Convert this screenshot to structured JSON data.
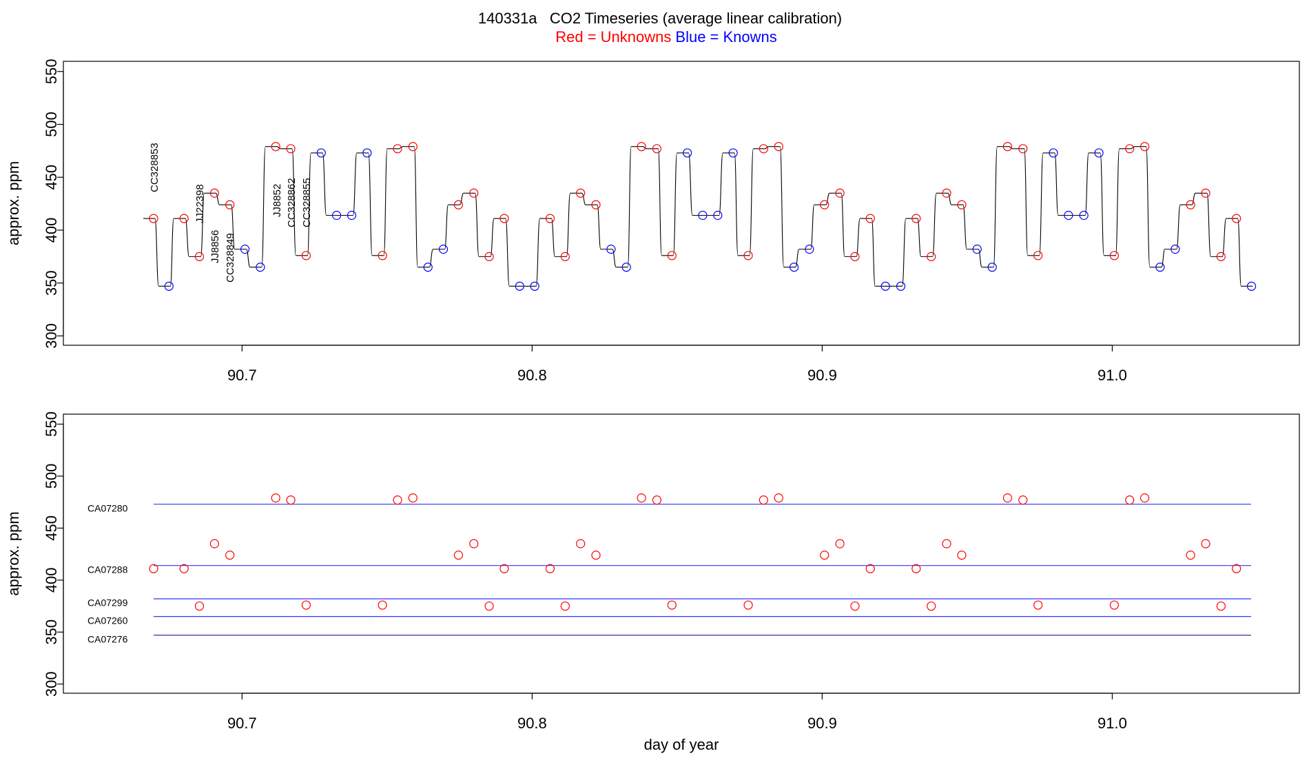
{
  "chart_data": [
    {
      "type": "scatter",
      "title": "140331a   CO2 Timeseries (average linear calibration)",
      "ylabel": "approx. ppm",
      "xlim": [
        90.6384,
        91.0645
      ],
      "ylim": [
        291.2,
        559.6
      ],
      "xticks": [
        90.7,
        90.8,
        90.9,
        {
          "value": 91,
          "label": "91.0"
        }
      ],
      "yticks": [
        300,
        350,
        400,
        450,
        500,
        550
      ],
      "trace_color": "#000000",
      "annotations": [
        "CC328853",
        "JJ22398",
        "JJ8856",
        "CC328849",
        "JJ8852",
        "CC328862",
        "CC328855"
      ],
      "annotation_color": "#ff0000",
      "series": [
        {
          "name": "Red = Unknowns",
          "color": "#ff0000",
          "x": [
            90.6695,
            90.68,
            90.6853,
            90.6905,
            90.6958,
            90.7116,
            90.7168,
            90.7221,
            90.7484,
            90.7536,
            90.7589,
            90.7746,
            90.7799,
            90.7852,
            90.7904,
            90.8062,
            90.8114,
            90.8167,
            90.822,
            90.8377,
            90.843,
            90.8482,
            90.8745,
            90.8798,
            90.885,
            90.9008,
            90.9061,
            90.9113,
            90.9166,
            90.9324,
            90.9376,
            90.9429,
            90.9481,
            90.9639,
            90.9692,
            90.9744,
            91.0007,
            91.006,
            91.0112,
            91.027,
            91.0322,
            91.0375,
            91.0428
          ],
          "values": [
            411,
            411,
            375,
            435,
            424,
            479,
            477,
            376,
            376,
            477,
            479,
            424,
            435,
            375,
            411,
            411,
            375,
            435,
            424,
            479,
            477,
            376,
            376,
            477,
            479,
            424,
            435,
            375,
            411,
            411,
            375,
            435,
            424,
            479,
            477,
            376,
            376,
            477,
            479,
            424,
            435,
            375,
            411
          ]
        },
        {
          "name": "Blue = Knowns",
          "color": "#0000ff",
          "x": [
            90.6748,
            90.701,
            90.7063,
            90.7273,
            90.7326,
            90.7378,
            90.7431,
            90.7641,
            90.7694,
            90.7957,
            90.8009,
            90.8272,
            90.8325,
            90.8535,
            90.8588,
            90.864,
            90.8693,
            90.8903,
            90.8956,
            90.9218,
            90.9271,
            90.9534,
            90.9586,
            90.9797,
            90.9849,
            90.9902,
            90.9954,
            91.0165,
            91.0217,
            91.048
          ],
          "values": [
            347,
            382,
            365,
            473,
            414,
            414,
            473,
            365,
            382,
            347,
            347,
            382,
            365,
            473,
            414,
            414,
            473,
            365,
            382,
            347,
            347,
            382,
            365,
            473,
            414,
            414,
            473,
            365,
            382,
            347
          ]
        }
      ]
    },
    {
      "type": "scatter",
      "ylabel": "approx. ppm",
      "xlabel": "day of year",
      "xlim": [
        90.6384,
        91.0645
      ],
      "ylim": [
        291.2,
        559.6
      ],
      "xticks": [
        90.7,
        90.8,
        90.9,
        {
          "value": 91,
          "label": "91.0"
        }
      ],
      "yticks": [
        300,
        350,
        400,
        450,
        500,
        550
      ],
      "reference_lines": [
        {
          "label": "CA07280",
          "value": 473,
          "color": "#3333ff"
        },
        {
          "label": "CA07288",
          "value": 414,
          "color": "#3333ff"
        },
        {
          "label": "CA07299",
          "value": 382,
          "color": "#3333ff"
        },
        {
          "label": "CA07260",
          "value": 365,
          "color": "#3333ff"
        },
        {
          "label": "CA07276",
          "value": 347,
          "color": "#1a1a99"
        }
      ],
      "series": [
        {
          "color": "#ff0000",
          "x": [
            90.6695,
            90.68,
            90.6853,
            90.6905,
            90.6958,
            90.7116,
            90.7168,
            90.7221,
            90.7484,
            90.7536,
            90.7589,
            90.7746,
            90.7799,
            90.7852,
            90.7904,
            90.8062,
            90.8114,
            90.8167,
            90.822,
            90.8377,
            90.843,
            90.8482,
            90.8745,
            90.8798,
            90.885,
            90.9008,
            90.9061,
            90.9113,
            90.9166,
            90.9324,
            90.9376,
            90.9429,
            90.9481,
            90.9639,
            90.9692,
            90.9744,
            91.0007,
            91.006,
            91.0112,
            91.027,
            91.0322,
            91.0375,
            91.0428
          ],
          "values": [
            411,
            411,
            375,
            435,
            424,
            479,
            477,
            376,
            376,
            477,
            479,
            424,
            435,
            375,
            411,
            411,
            375,
            435,
            424,
            479,
            477,
            376,
            376,
            477,
            479,
            424,
            435,
            375,
            411,
            411,
            375,
            435,
            424,
            479,
            477,
            376,
            376,
            477,
            479,
            424,
            435,
            375,
            411
          ]
        }
      ]
    }
  ]
}
